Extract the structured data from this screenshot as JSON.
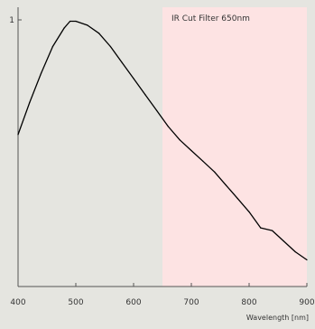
{
  "chart_data": {
    "type": "line",
    "title": "",
    "xlabel": "Wavelength [nm]",
    "ylabel": "",
    "xlim": [
      400,
      900
    ],
    "ylim": [
      0,
      1
    ],
    "grid": false,
    "x_ticks": [
      {
        "value": 400,
        "label": "400"
      },
      {
        "value": 500,
        "label": "500"
      },
      {
        "value": 600,
        "label": "600"
      },
      {
        "value": 700,
        "label": "700"
      },
      {
        "value": 800,
        "label": "800"
      },
      {
        "value": 900,
        "label": "900"
      }
    ],
    "y_ticks": [
      {
        "value": 1,
        "label": "1"
      }
    ],
    "shaded_region": {
      "x_start": 650,
      "x_end": 900,
      "label": "IR Cut Filter 650nm",
      "color": "#fde3e3"
    },
    "series": [
      {
        "color": "#000000",
        "points": [
          [
            400,
            0.57
          ],
          [
            420,
            0.69
          ],
          [
            440,
            0.8
          ],
          [
            460,
            0.9
          ],
          [
            480,
            0.97
          ],
          [
            490,
            0.995
          ],
          [
            500,
            0.995
          ],
          [
            520,
            0.98
          ],
          [
            540,
            0.95
          ],
          [
            560,
            0.9
          ],
          [
            580,
            0.84
          ],
          [
            600,
            0.78
          ],
          [
            620,
            0.72
          ],
          [
            640,
            0.66
          ],
          [
            660,
            0.6
          ],
          [
            680,
            0.55
          ],
          [
            700,
            0.51
          ],
          [
            720,
            0.47
          ],
          [
            740,
            0.43
          ],
          [
            760,
            0.38
          ],
          [
            780,
            0.33
          ],
          [
            800,
            0.28
          ],
          [
            820,
            0.22
          ],
          [
            840,
            0.21
          ],
          [
            860,
            0.17
          ],
          [
            880,
            0.13
          ],
          [
            900,
            0.1
          ]
        ]
      }
    ]
  }
}
